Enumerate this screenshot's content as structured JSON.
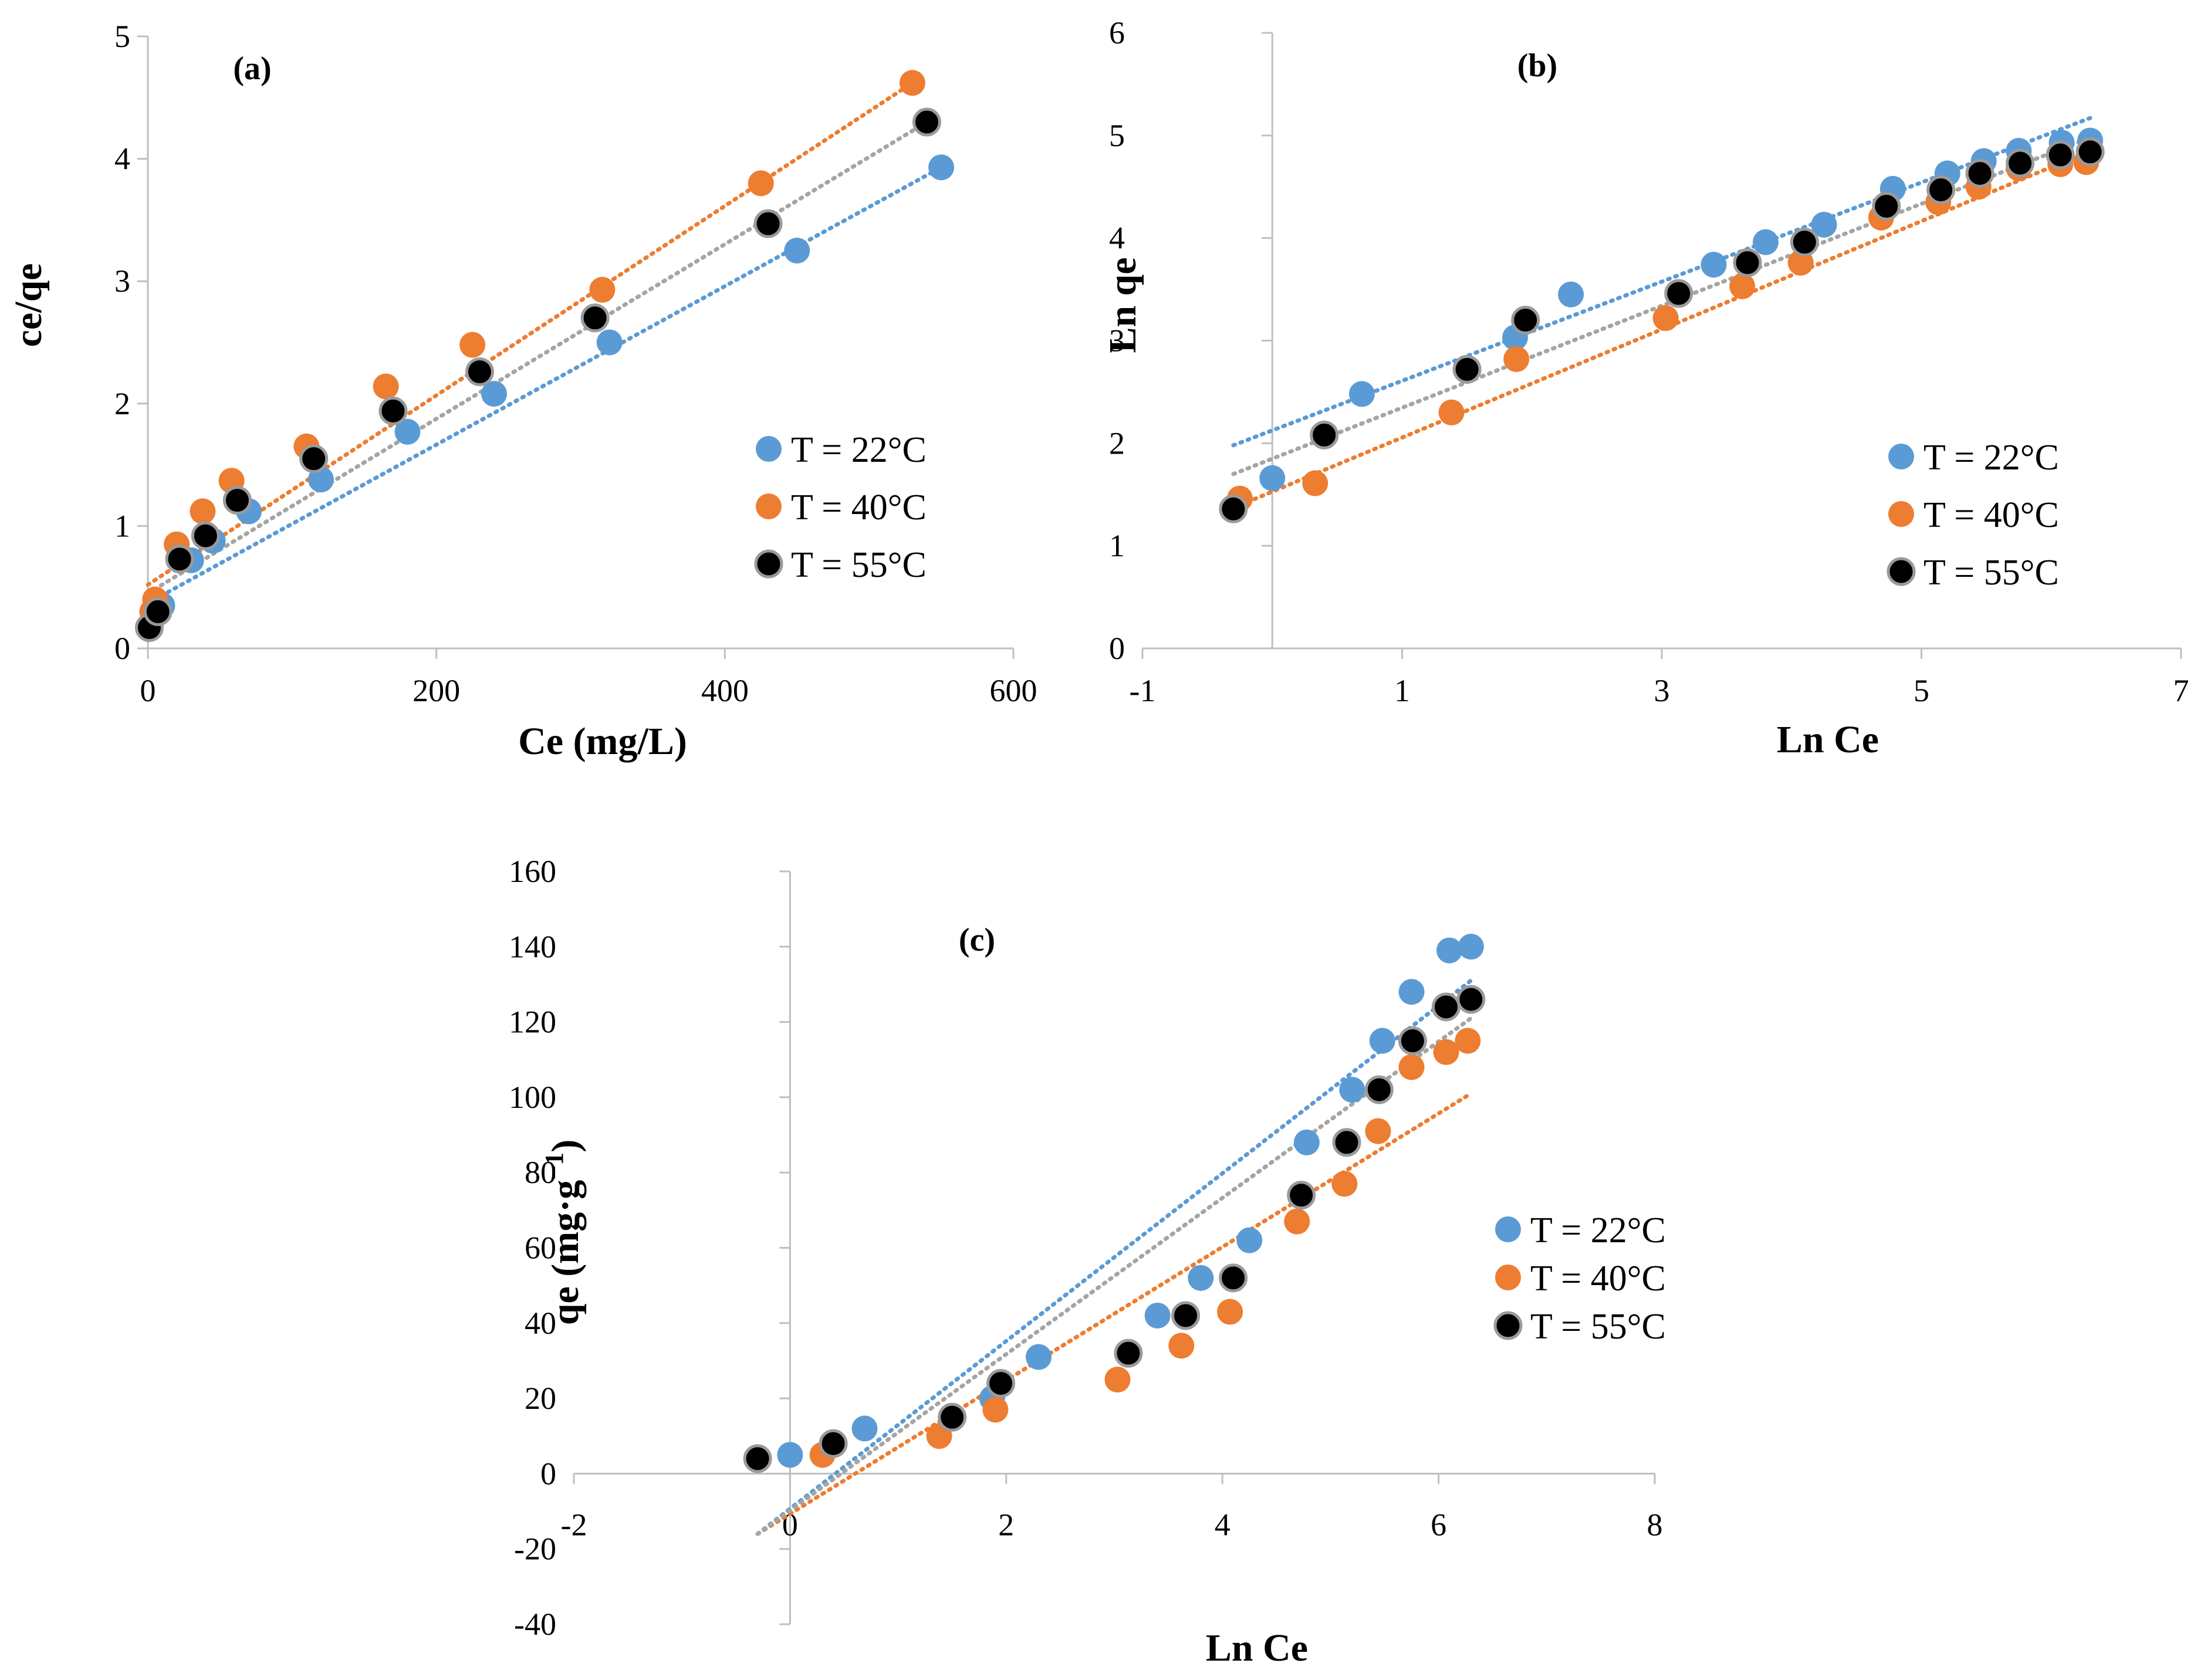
{
  "colors": {
    "t22": "#5B9BD5",
    "t40": "#ED7D31",
    "t55": "#000000",
    "t55_trend": "#A5A5A5",
    "axis": "#BFBFBF"
  },
  "chart_data": [
    {
      "id": "a",
      "type": "scatter",
      "panel_label": "(a)",
      "xlabel": "Ce (mg/L)",
      "ylabel": "ce/qe",
      "xlim": [
        0,
        600
      ],
      "ylim": [
        0,
        5
      ],
      "xticks": [
        0,
        200,
        400,
        600
      ],
      "yticks": [
        0,
        1,
        2,
        3,
        4,
        5
      ],
      "xtick_labels": [
        "0",
        "200",
        "400",
        "600"
      ],
      "ytick_labels": [
        "0",
        "1",
        "2",
        "3",
        "4",
        "5"
      ],
      "legend_position": "center-right",
      "series": [
        {
          "name": "T = 22°C",
          "color_key": "t22",
          "x": [
            2,
            6,
            10,
            30,
            45,
            70,
            120,
            180,
            240,
            320,
            450,
            550
          ],
          "y": [
            0.2,
            0.3,
            0.35,
            0.72,
            0.88,
            1.12,
            1.38,
            1.77,
            2.08,
            2.5,
            3.25,
            3.93
          ],
          "trend": {
            "x": [
              0,
              550
            ],
            "y": [
              0.37,
              3.93
            ]
          }
        },
        {
          "name": "T = 40°C",
          "color_key": "t40",
          "x": [
            3,
            5,
            20,
            38,
            58,
            110,
            165,
            225,
            315,
            425,
            530
          ],
          "y": [
            0.3,
            0.4,
            0.85,
            1.12,
            1.37,
            1.65,
            2.14,
            2.48,
            2.93,
            3.8,
            4.62
          ],
          "trend": {
            "x": [
              0,
              530
            ],
            "y": [
              0.52,
              4.62
            ]
          }
        },
        {
          "name": "T = 55°C",
          "color_key": "t55",
          "x": [
            1,
            7,
            22,
            40,
            62,
            115,
            170,
            230,
            310,
            430,
            540
          ],
          "y": [
            0.17,
            0.3,
            0.73,
            0.92,
            1.21,
            1.55,
            1.94,
            2.26,
            2.7,
            3.47,
            4.3
          ],
          "trend": {
            "x": [
              0,
              540
            ],
            "y": [
              0.45,
              4.3
            ]
          }
        }
      ]
    },
    {
      "id": "b",
      "type": "scatter",
      "panel_label": "(b)",
      "xlabel": "Ln Ce",
      "ylabel": "Ln qe",
      "xlim": [
        -1,
        7
      ],
      "ylim": [
        0,
        6
      ],
      "xticks": [
        -1,
        1,
        3,
        5,
        7
      ],
      "yticks": [
        0,
        1,
        2,
        3,
        4,
        5,
        6
      ],
      "xtick_labels": [
        "-1",
        "1",
        "3",
        "5",
        "7"
      ],
      "ytick_labels": [
        "0",
        "1",
        "2",
        "3",
        "4",
        "5",
        "6"
      ],
      "legend_position": "center-right",
      "series": [
        {
          "name": "T = 22°C",
          "color_key": "t22",
          "x": [
            0.0,
            0.69,
            1.87,
            2.3,
            3.4,
            3.8,
            4.25,
            4.78,
            5.2,
            5.48,
            5.75,
            6.08,
            6.3
          ],
          "y": [
            1.66,
            2.48,
            3.03,
            3.45,
            3.74,
            3.96,
            4.13,
            4.48,
            4.63,
            4.75,
            4.85,
            4.93,
            4.95
          ],
          "trend": {
            "x": [
              -0.3,
              6.3
            ],
            "y": [
              1.98,
              5.17
            ]
          }
        },
        {
          "name": "T = 40°C",
          "color_key": "t40",
          "x": [
            -0.25,
            0.33,
            1.38,
            1.88,
            3.03,
            3.62,
            4.07,
            4.69,
            5.13,
            5.44,
            5.75,
            6.07,
            6.27
          ],
          "y": [
            1.46,
            1.61,
            2.3,
            2.82,
            3.22,
            3.53,
            3.76,
            4.2,
            4.35,
            4.5,
            4.68,
            4.72,
            4.74
          ],
          "trend": {
            "x": [
              -0.3,
              6.3
            ],
            "y": [
              1.37,
              4.85
            ]
          }
        },
        {
          "name": "T = 55°C",
          "color_key": "t55",
          "x": [
            -0.3,
            0.4,
            1.5,
            1.95,
            3.13,
            3.66,
            4.1,
            4.73,
            5.15,
            5.45,
            5.76,
            6.07,
            6.3
          ],
          "y": [
            1.36,
            2.08,
            2.72,
            3.2,
            3.46,
            3.76,
            3.96,
            4.31,
            4.47,
            4.63,
            4.73,
            4.81,
            4.84
          ],
          "trend": {
            "x": [
              -0.3,
              6.3
            ],
            "y": [
              1.7,
              4.98
            ]
          }
        }
      ]
    },
    {
      "id": "c",
      "type": "scatter",
      "panel_label": "(c)",
      "xlabel": "Ln Ce",
      "ylabel": "qe (mg·g",
      "ylabel_superscript": "−1",
      "ylabel_close": ")",
      "xlim": [
        -2,
        8
      ],
      "ylim": [
        -40,
        160
      ],
      "xticks": [
        -2,
        0,
        2,
        4,
        6,
        8
      ],
      "yticks": [
        -40,
        -20,
        0,
        20,
        40,
        60,
        80,
        100,
        120,
        140,
        160
      ],
      "xtick_labels": [
        "-2",
        "0",
        "2",
        "4",
        "6",
        "8"
      ],
      "ytick_labels": [
        "-40",
        "-20",
        "0",
        "20",
        "40",
        "60",
        "80",
        "100",
        "120",
        "140",
        "160"
      ],
      "legend_position": "center-right",
      "series": [
        {
          "name": "T = 22°C",
          "color_key": "t22",
          "x": [
            0.0,
            0.69,
            1.87,
            2.3,
            3.4,
            3.8,
            4.25,
            4.78,
            5.2,
            5.48,
            5.75,
            6.1,
            6.3
          ],
          "y": [
            5,
            12,
            20,
            31,
            42,
            52,
            62,
            88,
            102,
            115,
            128,
            139,
            140
          ],
          "trend": {
            "x": [
              -0.3,
              6.3
            ],
            "y": [
              -16,
              131
            ]
          }
        },
        {
          "name": "T = 40°C",
          "color_key": "t40",
          "x": [
            -0.3,
            0.3,
            1.38,
            1.9,
            3.03,
            3.62,
            4.07,
            4.69,
            5.13,
            5.44,
            5.75,
            6.07,
            6.27
          ],
          "y": [
            4,
            5,
            10,
            17,
            25,
            34,
            43,
            67,
            77,
            91,
            108,
            112,
            115
          ],
          "trend": {
            "x": [
              -0.3,
              6.3
            ],
            "y": [
              -16,
              101
            ]
          }
        },
        {
          "name": "T = 55°C",
          "color_key": "t55",
          "x": [
            -0.3,
            0.4,
            1.5,
            1.95,
            3.13,
            3.66,
            4.1,
            4.73,
            5.15,
            5.45,
            5.76,
            6.07,
            6.3
          ],
          "y": [
            4,
            8,
            15,
            24,
            32,
            42,
            52,
            74,
            88,
            102,
            115,
            124,
            126
          ],
          "trend": {
            "x": [
              -0.3,
              6.3
            ],
            "y": [
              -16,
              121
            ]
          }
        }
      ]
    }
  ]
}
